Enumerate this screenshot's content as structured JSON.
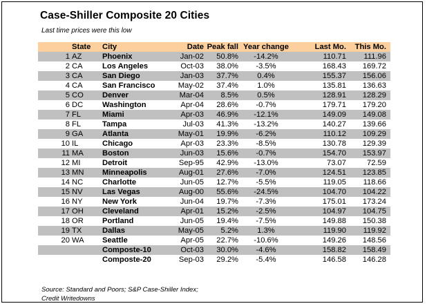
{
  "title": "Case-Shiller Composite 20 Cities",
  "subtitle": "Last time prices were this low",
  "table": {
    "headers": {
      "rank": "",
      "state": "State",
      "city": "City",
      "date": "Date",
      "peak_fall": "Peak fall",
      "year_change": "Year change",
      "last_mo": "Last Mo.",
      "this_mo": "This Mo."
    },
    "rows": [
      {
        "rank": "1",
        "state": "AZ",
        "city": "Phoenix",
        "date": "Jan-02",
        "peak_fall": "50.8%",
        "year_change": "-14.2%",
        "last_mo": "110.71",
        "this_mo": "111.96"
      },
      {
        "rank": "2",
        "state": "CA",
        "city": "Los Angeles",
        "date": "Oct-03",
        "peak_fall": "38.0%",
        "year_change": "-3.5%",
        "last_mo": "168.43",
        "this_mo": "169.72"
      },
      {
        "rank": "3",
        "state": "CA",
        "city": "San Diego",
        "date": "Jan-03",
        "peak_fall": "37.7%",
        "year_change": "0.4%",
        "last_mo": "155.37",
        "this_mo": "156.06"
      },
      {
        "rank": "4",
        "state": "CA",
        "city": "San Francisco",
        "date": "May-02",
        "peak_fall": "37.4%",
        "year_change": "1.0%",
        "last_mo": "135.81",
        "this_mo": "136.63"
      },
      {
        "rank": "5",
        "state": "CO",
        "city": "Denver",
        "date": "Mar-04",
        "peak_fall": "8.5%",
        "year_change": "0.5%",
        "last_mo": "128.91",
        "this_mo": "128.29"
      },
      {
        "rank": "6",
        "state": "DC",
        "city": "Washington",
        "date": "Apr-04",
        "peak_fall": "28.6%",
        "year_change": "-0.7%",
        "last_mo": "179.71",
        "this_mo": "179.20"
      },
      {
        "rank": "7",
        "state": "FL",
        "city": "Miami",
        "date": "Apr-03",
        "peak_fall": "46.9%",
        "year_change": "-12.1%",
        "last_mo": "149.09",
        "this_mo": "149.08"
      },
      {
        "rank": "8",
        "state": "FL",
        "city": "Tampa",
        "date": "Jul-03",
        "peak_fall": "41.3%",
        "year_change": "-13.2%",
        "last_mo": "140.27",
        "this_mo": "139.66"
      },
      {
        "rank": "9",
        "state": "GA",
        "city": "Atlanta",
        "date": "May-01",
        "peak_fall": "19.9%",
        "year_change": "-6.2%",
        "last_mo": "110.12",
        "this_mo": "109.29"
      },
      {
        "rank": "10",
        "state": "IL",
        "city": "Chicago",
        "date": "Apr-03",
        "peak_fall": "23.3%",
        "year_change": "-8.5%",
        "last_mo": "130.78",
        "this_mo": "129.39"
      },
      {
        "rank": "11",
        "state": "MA",
        "city": "Boston",
        "date": "Jun-03",
        "peak_fall": "15.6%",
        "year_change": "-0.7%",
        "last_mo": "154.70",
        "this_mo": "153.97"
      },
      {
        "rank": "12",
        "state": "MI",
        "city": "Detroit",
        "date": "Sep-95",
        "peak_fall": "42.9%",
        "year_change": "-13.0%",
        "last_mo": "73.07",
        "this_mo": "72.59"
      },
      {
        "rank": "13",
        "state": "MN",
        "city": "Minneapolis",
        "date": "Aug-01",
        "peak_fall": "27.6%",
        "year_change": "-7.0%",
        "last_mo": "124.51",
        "this_mo": "123.85"
      },
      {
        "rank": "14",
        "state": "NC",
        "city": "Charlotte",
        "date": "Jun-05",
        "peak_fall": "12.7%",
        "year_change": "-5.5%",
        "last_mo": "119.05",
        "this_mo": "118.66"
      },
      {
        "rank": "15",
        "state": "NV",
        "city": "Las Vegas",
        "date": "Aug-00",
        "peak_fall": "55.6%",
        "year_change": "-24.5%",
        "last_mo": "104.70",
        "this_mo": "104.22"
      },
      {
        "rank": "16",
        "state": "NY",
        "city": "New York",
        "date": "Jun-04",
        "peak_fall": "19.7%",
        "year_change": "-7.3%",
        "last_mo": "175.01",
        "this_mo": "173.24"
      },
      {
        "rank": "17",
        "state": "OH",
        "city": "Cleveland",
        "date": "Apr-01",
        "peak_fall": "15.2%",
        "year_change": "-2.5%",
        "last_mo": "104.97",
        "this_mo": "104.75"
      },
      {
        "rank": "18",
        "state": "OR",
        "city": "Portland",
        "date": "Jun-05",
        "peak_fall": "19.4%",
        "year_change": "-7.5%",
        "last_mo": "149.88",
        "this_mo": "150.38"
      },
      {
        "rank": "19",
        "state": "TX",
        "city": "Dallas",
        "date": "May-05",
        "peak_fall": "5.2%",
        "year_change": "1.3%",
        "last_mo": "119.90",
        "this_mo": "119.92"
      },
      {
        "rank": "20",
        "state": "WA",
        "city": "Seattle",
        "date": "Apr-05",
        "peak_fall": "22.7%",
        "year_change": "-10.6%",
        "last_mo": "149.26",
        "this_mo": "148.56"
      },
      {
        "rank": "",
        "state": "",
        "city": "Composte-10",
        "date": "Oct-03",
        "peak_fall": "30.0%",
        "year_change": "-4.6%",
        "last_mo": "158.82",
        "this_mo": "158.49"
      },
      {
        "rank": "",
        "state": "",
        "city": "Composte-20",
        "date": "Sep-03",
        "peak_fall": "29.2%",
        "year_change": "-5.4%",
        "last_mo": "146.58",
        "this_mo": "146.28"
      }
    ]
  },
  "source": "Source: Standard and Poors; S&P Case-Shiller Index; Credit Writedowns",
  "colors": {
    "header_bg": "#fccf9c",
    "shaded_row_bg": "#c0c0c0"
  }
}
